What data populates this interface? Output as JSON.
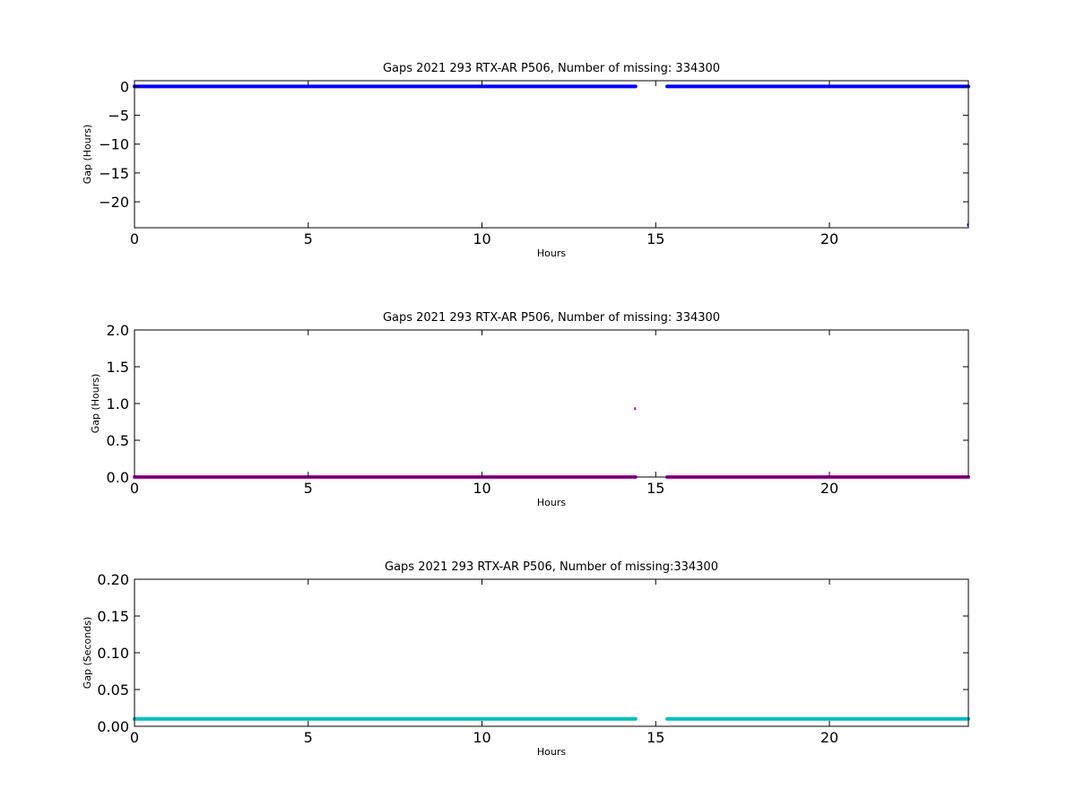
{
  "chart_data": [
    {
      "type": "scatter",
      "title": "Gaps 2021 293 RTX-AR  P506, Number of missing: 334300",
      "xlabel": "Hours",
      "ylabel": "Gap (Hours)",
      "xlim": [
        0,
        24
      ],
      "ylim": [
        -24.5,
        1
      ],
      "xticks": [
        "0",
        "5",
        "10",
        "15",
        "20"
      ],
      "yticks": [
        "0",
        "−5",
        "−10",
        "−15",
        "−20"
      ],
      "color": "#0000ff",
      "grid": false,
      "series": [
        {
          "segments": [
            [
              0,
              14.42
            ],
            [
              15.33,
              24
            ]
          ],
          "y": 0
        },
        {
          "points": [
            [
              24,
              -24
            ]
          ]
        }
      ]
    },
    {
      "type": "scatter",
      "title": "Gaps 2021 293 RTX-AR  P506, Number of missing: 334300",
      "xlabel": "Hours",
      "ylabel": "Gap (Hours)",
      "xlim": [
        0,
        24
      ],
      "ylim": [
        0,
        2
      ],
      "xticks": [
        "0",
        "5",
        "10",
        "15",
        "20"
      ],
      "yticks": [
        "0.0",
        "0.5",
        "1.0",
        "1.5",
        "2.0"
      ],
      "color": "#bf00bf",
      "grid": false,
      "series": [
        {
          "segments": [
            [
              0,
              14.42
            ],
            [
              15.33,
              24
            ]
          ],
          "y": 0
        },
        {
          "points": [
            [
              14.42,
              0.93
            ]
          ]
        }
      ]
    },
    {
      "type": "scatter",
      "title": "Gaps 2021 293 RTX-AR  P506, Number of missing:334300",
      "xlabel": "Hours",
      "ylabel": "Gap (Seconds)",
      "xlim": [
        0,
        24
      ],
      "ylim": [
        0,
        0.2
      ],
      "xticks": [
        "0",
        "5",
        "10",
        "15",
        "20"
      ],
      "yticks": [
        "0.00",
        "0.05",
        "0.10",
        "0.15",
        "0.20"
      ],
      "color": "#00bfbf",
      "grid": false,
      "series": [
        {
          "segments": [
            [
              0,
              14.42
            ],
            [
              15.33,
              24
            ]
          ],
          "y": 0.01
        }
      ]
    }
  ]
}
